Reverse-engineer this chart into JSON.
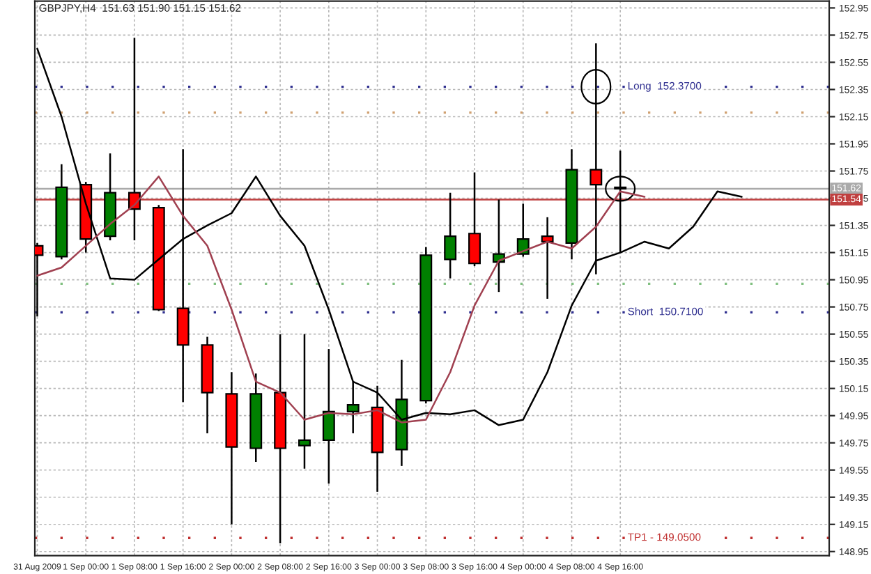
{
  "chart_data": {
    "type": "candlestick",
    "title": "GBPJPY,H4  151.63 151.90 151.15 151.62",
    "categories": [
      "31 Aug 2009",
      null,
      "1 Sep 00:00",
      null,
      "1 Sep 08:00",
      null,
      "1 Sep 16:00",
      null,
      "2 Sep 00:00",
      null,
      "2 Sep 08:00",
      null,
      "2 Sep 16:00",
      null,
      "3 Sep 00:00",
      null,
      "3 Sep 08:00",
      null,
      "3 Sep 16:00",
      null,
      "4 Sep 00:00",
      null,
      "4 Sep 08:00",
      null,
      "4 Sep 16:00",
      null,
      null,
      null,
      null,
      null,
      null,
      null,
      null
    ],
    "ohlc": [
      [
        151.2,
        151.22,
        150.68,
        151.13
      ],
      [
        151.12,
        151.8,
        151.1,
        151.63
      ],
      [
        151.65,
        151.67,
        151.15,
        151.25
      ],
      [
        151.27,
        151.88,
        151.24,
        151.59
      ],
      [
        151.59,
        152.73,
        151.24,
        151.47
      ],
      [
        151.48,
        151.5,
        150.72,
        150.73
      ],
      [
        150.74,
        151.91,
        150.05,
        150.47
      ],
      [
        150.47,
        150.53,
        149.82,
        150.12
      ],
      [
        150.11,
        150.27,
        149.15,
        149.72
      ],
      [
        149.71,
        150.26,
        149.61,
        150.11
      ],
      [
        150.12,
        150.55,
        149.01,
        149.71
      ],
      [
        149.73,
        150.55,
        149.56,
        149.77
      ],
      [
        149.77,
        150.44,
        149.45,
        149.98
      ],
      [
        149.98,
        150.2,
        149.82,
        150.03
      ],
      [
        150.01,
        150.17,
        149.39,
        149.68
      ],
      [
        149.7,
        150.36,
        149.58,
        150.07
      ],
      [
        150.06,
        151.19,
        150.04,
        151.13
      ],
      [
        151.1,
        151.59,
        150.96,
        151.27
      ],
      [
        151.29,
        151.74,
        151.05,
        151.07
      ],
      [
        151.08,
        151.54,
        150.86,
        151.14
      ],
      [
        151.14,
        151.51,
        151.12,
        151.25
      ],
      [
        151.27,
        151.41,
        150.81,
        151.23
      ],
      [
        151.22,
        151.91,
        151.1,
        151.76
      ],
      [
        151.76,
        152.69,
        150.99,
        151.65
      ],
      [
        151.63,
        151.9,
        151.15,
        151.62
      ],
      null,
      null,
      null,
      null,
      null,
      null,
      null,
      null
    ],
    "colors": [
      "#ff0000",
      "#008000",
      "#ff0000",
      "#008000",
      "#ff0000",
      "#ff0000",
      "#ff0000",
      "#ff0000",
      "#ff0000",
      "#008000",
      "#ff0000",
      "#008000",
      "#008000",
      "#008000",
      "#ff0000",
      "#008000",
      "#008000",
      "#008000",
      "#ff0000",
      "#008000",
      "#008000",
      "#ff0000",
      "#008000",
      "#ff0000",
      "#ff0000",
      null,
      null,
      null,
      null,
      null,
      null,
      null,
      null
    ],
    "series": [
      {
        "type": "line",
        "color": "#000000",
        "values": [
          152.65,
          152.15,
          151.51,
          150.96,
          150.95,
          151.1,
          151.25,
          151.35,
          151.44,
          151.71,
          151.42,
          151.2,
          150.73,
          150.2,
          150.12,
          149.92,
          149.97,
          149.96,
          149.99,
          149.88,
          149.92,
          150.27,
          150.76,
          151.09,
          151.15,
          151.23,
          151.18,
          151.34,
          151.6,
          151.56,
          null,
          null,
          null
        ]
      },
      {
        "type": "line",
        "color": "#a04050",
        "values": [
          150.98,
          151.04,
          151.2,
          151.36,
          151.5,
          151.71,
          151.42,
          151.2,
          150.73,
          150.2,
          150.12,
          149.92,
          149.97,
          149.96,
          149.99,
          149.9,
          149.92,
          150.27,
          150.76,
          151.09,
          151.16,
          151.23,
          151.18,
          151.34,
          151.6,
          151.56,
          null,
          null,
          null,
          null,
          null,
          null,
          null
        ]
      }
    ],
    "ylim": [
      148.92,
      153.0
    ],
    "yticks": [
      148.95,
      149.15,
      149.35,
      149.55,
      149.75,
      149.95,
      150.15,
      150.35,
      150.55,
      150.75,
      150.95,
      151.15,
      151.35,
      151.55,
      151.75,
      151.95,
      152.15,
      152.35,
      152.55,
      152.75,
      152.95
    ],
    "ref_lines": [
      {
        "axis": "y",
        "value": 151.62,
        "label": "151.62",
        "color": "#aaaaaa",
        "line_style": "solid"
      },
      {
        "axis": "y",
        "value": 151.54,
        "label": "151.54",
        "color": "#c04040",
        "line_style": "solid"
      },
      {
        "axis": "y",
        "value": 152.18,
        "color": "#d0a070",
        "line_style": "dotted"
      },
      {
        "axis": "y",
        "value": 150.92,
        "color": "#80c080",
        "line_style": "dotted"
      },
      {
        "axis": "y",
        "value": 152.37,
        "label": "Long  152.3700",
        "color": "#303090",
        "line_style": "dotted"
      },
      {
        "axis": "y",
        "value": 150.71,
        "label": "Short  150.7100",
        "color": "#303090",
        "line_style": "dotted"
      },
      {
        "axis": "y",
        "value": 149.05,
        "label": "TP1 - 149.0500",
        "color": "#c03030",
        "line_style": "dotted"
      }
    ],
    "grid": true
  }
}
